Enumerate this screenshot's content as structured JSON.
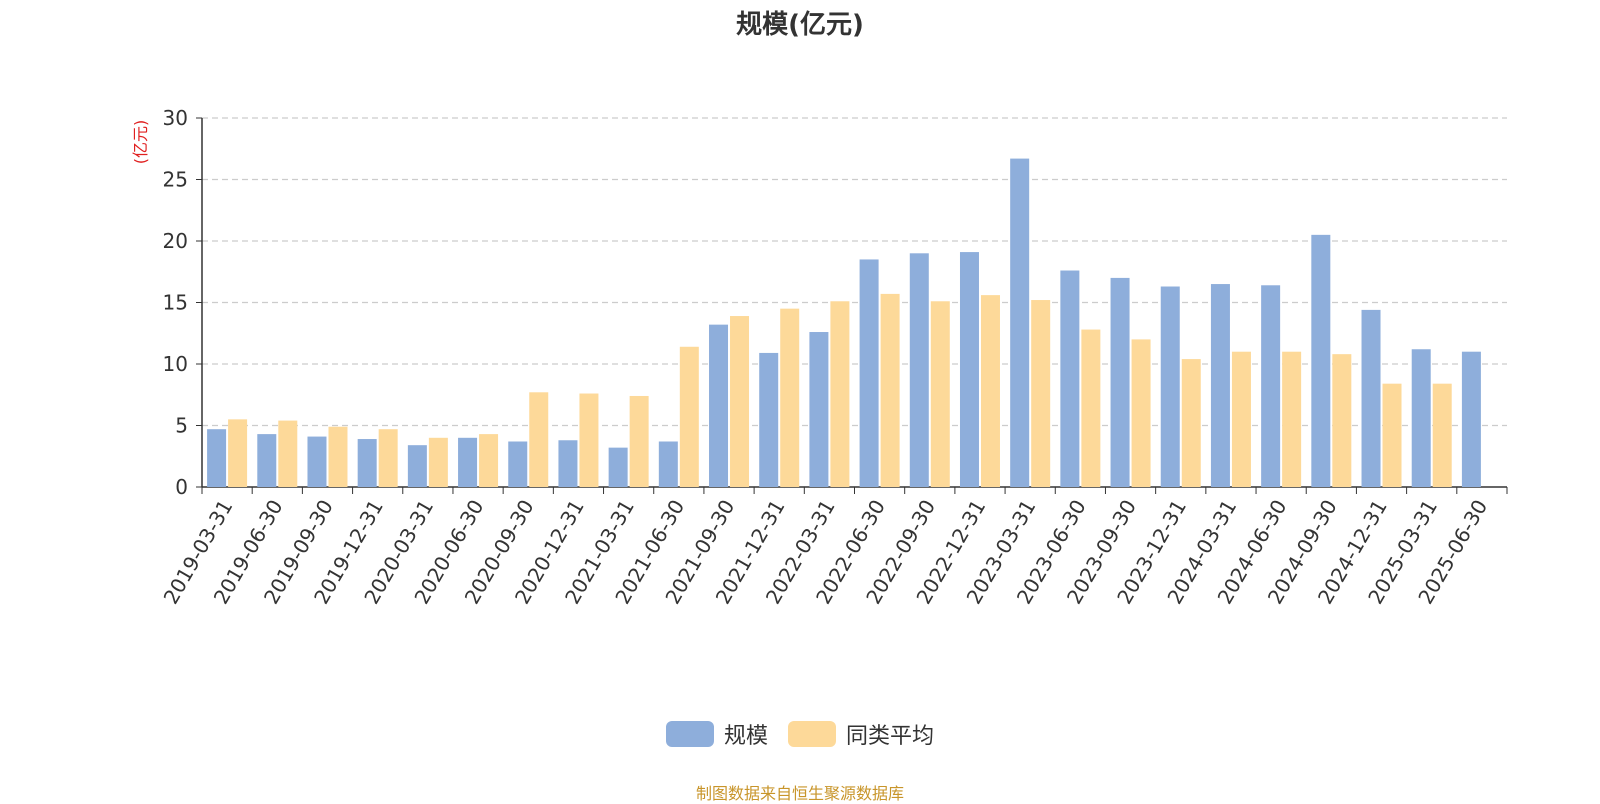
{
  "chart_data": {
    "type": "bar",
    "title": "规模(亿元)",
    "ylabel": "(亿元)",
    "ylim": [
      0,
      30
    ],
    "yticks": [
      "0",
      "5",
      "10",
      "15",
      "20",
      "25",
      "30"
    ],
    "grid": true,
    "legend_position": "bottom",
    "categories": [
      "2019-03-31",
      "2019-06-30",
      "2019-09-30",
      "2019-12-31",
      "2020-03-31",
      "2020-06-30",
      "2020-09-30",
      "2020-12-31",
      "2021-03-31",
      "2021-06-30",
      "2021-09-30",
      "2021-12-31",
      "2022-03-31",
      "2022-06-30",
      "2022-09-30",
      "2022-12-31",
      "2023-03-31",
      "2023-06-30",
      "2023-09-30",
      "2023-12-31",
      "2024-03-31",
      "2024-06-30",
      "2024-09-30",
      "2024-12-31",
      "2025-03-31",
      "2025-06-30"
    ],
    "series": [
      {
        "name": "规模",
        "color": "#8eaedb",
        "values": [
          4.7,
          4.3,
          4.1,
          3.9,
          3.4,
          4.0,
          3.7,
          3.8,
          3.2,
          3.7,
          13.2,
          10.9,
          12.6,
          18.5,
          19.0,
          19.1,
          26.7,
          17.6,
          17.0,
          16.3,
          16.5,
          16.4,
          20.5,
          14.4,
          11.2,
          11.0
        ]
      },
      {
        "name": "同类平均",
        "color": "#fdd999",
        "values": [
          5.5,
          5.4,
          4.9,
          4.7,
          4.0,
          4.3,
          7.7,
          7.6,
          7.4,
          11.4,
          13.9,
          14.5,
          15.1,
          15.7,
          15.1,
          15.6,
          15.2,
          12.8,
          12.0,
          10.4,
          11.0,
          11.0,
          10.8,
          8.4,
          8.4,
          null
        ]
      }
    ]
  },
  "legend": {
    "series1_label": "规模",
    "series2_label": "同类平均"
  },
  "source_text": "制图数据来自恒生聚源数据库"
}
